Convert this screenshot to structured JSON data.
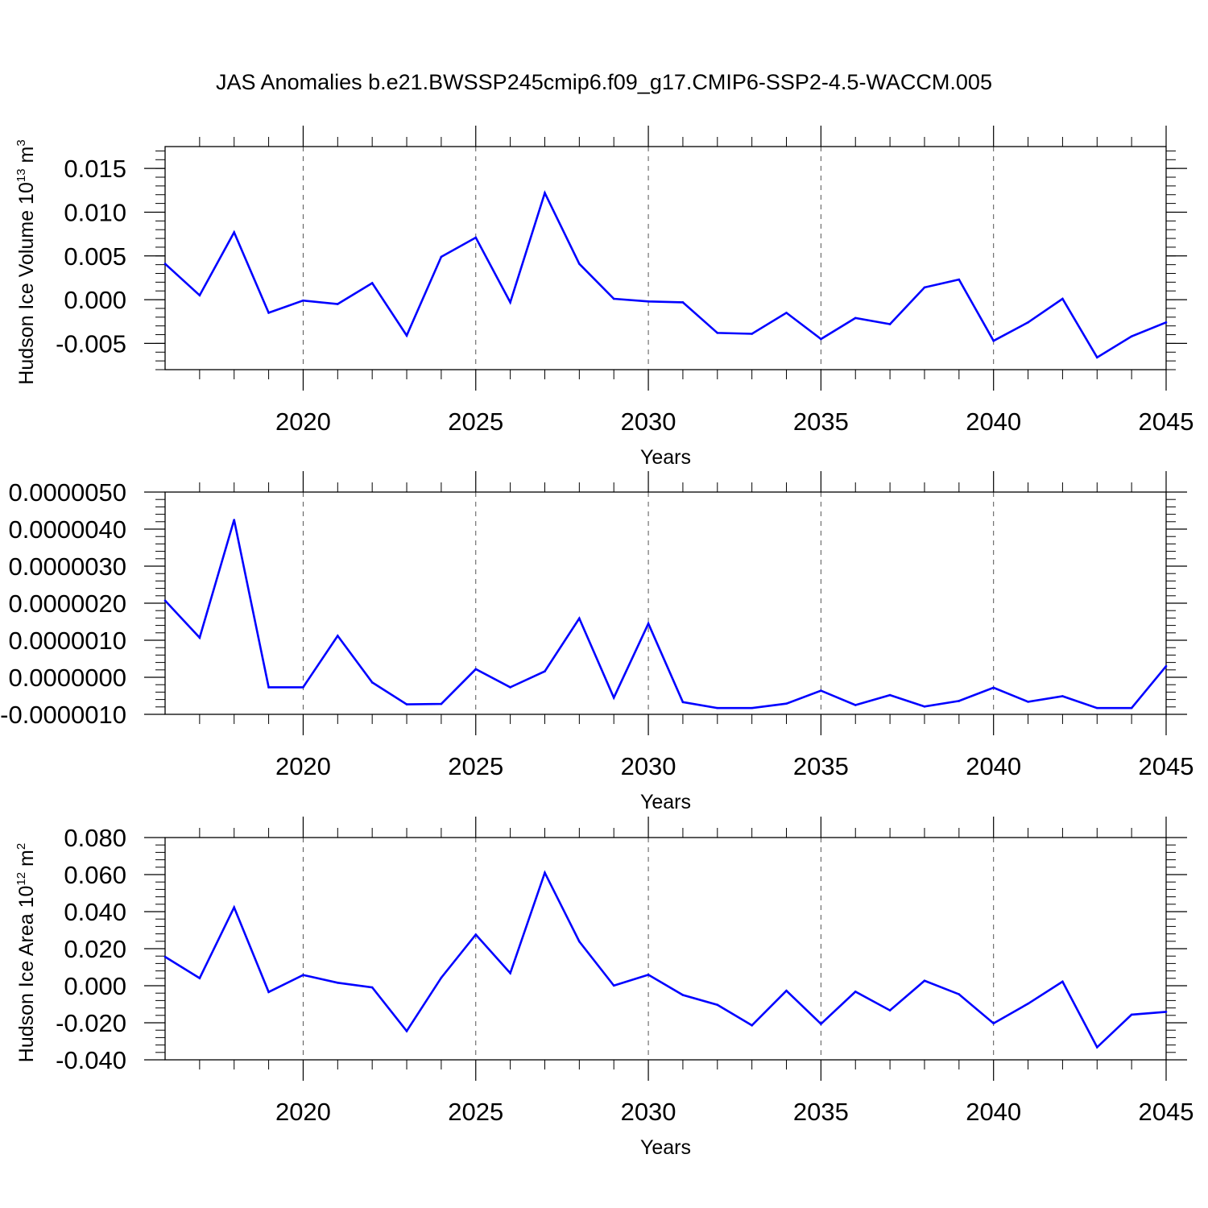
{
  "title": "JAS Anomalies b.e21.BWSSP245cmip6.f09_g17.CMIP6-SSP2-4.5-WACCM.005",
  "line_color": "#0000ff",
  "chart_data": [
    {
      "type": "line",
      "ylabel": "Hudson Ice Volume 10",
      "ylabel_exponent": "13",
      "ylabel_unit": " m",
      "ylabel_unit_exponent": "3",
      "xlabel": "Years",
      "xlim": [
        2016,
        2045
      ],
      "ylim": [
        -0.008,
        0.0175
      ],
      "xticks": [
        2020,
        2025,
        2030,
        2035,
        2040,
        2045
      ],
      "xtick_labels": [
        "2020",
        "2025",
        "2030",
        "2035",
        "2040",
        "2045"
      ],
      "yticks": [
        -0.005,
        0.0,
        0.005,
        0.01,
        0.015
      ],
      "ytick_labels": [
        "-0.005",
        "0.000",
        "0.005",
        "0.010",
        "0.015"
      ],
      "yminor": [
        -0.0075,
        -0.0025,
        0.0025,
        0.0075,
        0.0125,
        0.0175
      ],
      "x": [
        2016,
        2017,
        2018,
        2019,
        2020,
        2021,
        2022,
        2023,
        2024,
        2025,
        2026,
        2027,
        2028,
        2029,
        2030,
        2031,
        2032,
        2033,
        2034,
        2035,
        2036,
        2037,
        2038,
        2039,
        2040,
        2041,
        2042,
        2043,
        2044,
        2045
      ],
      "values": [
        0.0041,
        0.0005,
        0.0077,
        -0.0015,
        -0.0001,
        -0.0005,
        0.0019,
        -0.0041,
        0.0049,
        0.0071,
        -0.0003,
        0.0122,
        0.0041,
        0.0001,
        -0.0002,
        -0.0003,
        -0.0038,
        -0.0039,
        -0.0015,
        -0.0045,
        -0.0021,
        -0.0028,
        0.0014,
        0.0023,
        -0.0047,
        -0.0026,
        0.0001,
        -0.0066,
        -0.0042,
        -0.0026
      ]
    },
    {
      "type": "line",
      "ylabel": "",
      "xlabel": "Years",
      "xlim": [
        2016,
        2045
      ],
      "ylim": [
        -1e-06,
        5e-06
      ],
      "xticks": [
        2020,
        2025,
        2030,
        2035,
        2040,
        2045
      ],
      "xtick_labels": [
        "2020",
        "2025",
        "2030",
        "2035",
        "2040",
        "2045"
      ],
      "yticks": [
        -1e-06,
        0.0,
        1e-06,
        2e-06,
        3e-06,
        4e-06,
        5e-06
      ],
      "ytick_labels": [
        "-0.0000010",
        "0.0000000",
        "0.0000010",
        "0.0000020",
        "0.0000030",
        "0.0000040",
        "0.0000050"
      ],
      "yminor": [
        -5e-07,
        5e-07,
        1.5e-06,
        2.5e-06,
        3.5e-06,
        4.5e-06
      ],
      "x": [
        2016,
        2017,
        2018,
        2019,
        2020,
        2021,
        2022,
        2023,
        2024,
        2025,
        2026,
        2027,
        2028,
        2029,
        2030,
        2031,
        2032,
        2033,
        2034,
        2035,
        2036,
        2037,
        2038,
        2039,
        2040,
        2041,
        2042,
        2043,
        2044,
        2045
      ],
      "values": [
        2.07e-06,
        1.07e-06,
        4.25e-06,
        -2.7e-07,
        -2.7e-07,
        1.12e-06,
        -1.4e-07,
        -7.3e-07,
        -7.2e-07,
        2.2e-07,
        -2.7e-07,
        1.6e-07,
        1.59e-06,
        -5.5e-07,
        1.45e-06,
        -6.7e-07,
        -8.3e-07,
        -8.3e-07,
        -7.1e-07,
        -3.6e-07,
        -7.5e-07,
        -4.8e-07,
        -7.9e-07,
        -6.4e-07,
        -2.8e-07,
        -6.6e-07,
        -5.1e-07,
        -8.3e-07,
        -8.3e-07,
        3e-07
      ]
    },
    {
      "type": "line",
      "ylabel": "Hudson Ice Area 10",
      "ylabel_exponent": "12",
      "ylabel_unit": " m",
      "ylabel_unit_exponent": "2",
      "xlabel": "Years",
      "xlim": [
        2016,
        2045
      ],
      "ylim": [
        -0.04,
        0.08
      ],
      "xticks": [
        2020,
        2025,
        2030,
        2035,
        2040,
        2045
      ],
      "xtick_labels": [
        "2020",
        "2025",
        "2030",
        "2035",
        "2040",
        "2045"
      ],
      "yticks": [
        -0.04,
        -0.02,
        0.0,
        0.02,
        0.04,
        0.06,
        0.08
      ],
      "ytick_labels": [
        "-0.040",
        "-0.020",
        "0.000",
        "0.020",
        "0.040",
        "0.060",
        "0.080"
      ],
      "yminor": [
        -0.03,
        -0.01,
        0.01,
        0.03,
        0.05,
        0.07
      ],
      "x": [
        2016,
        2017,
        2018,
        2019,
        2020,
        2021,
        2022,
        2023,
        2024,
        2025,
        2026,
        2027,
        2028,
        2029,
        2030,
        2031,
        2032,
        2033,
        2034,
        2035,
        2036,
        2037,
        2038,
        2039,
        2040,
        2041,
        2042,
        2043,
        2044,
        2045
      ],
      "values": [
        0.0156,
        0.0041,
        0.0423,
        -0.0034,
        0.0058,
        0.0016,
        -0.0009,
        -0.0245,
        0.0043,
        0.0276,
        0.0068,
        0.061,
        0.0239,
        0.0001,
        0.0059,
        -0.005,
        -0.0103,
        -0.0214,
        -0.0027,
        -0.0206,
        -0.0032,
        -0.0133,
        0.0027,
        -0.0046,
        -0.0203,
        -0.0097,
        0.0022,
        -0.0332,
        -0.0156,
        -0.0141
      ]
    }
  ]
}
